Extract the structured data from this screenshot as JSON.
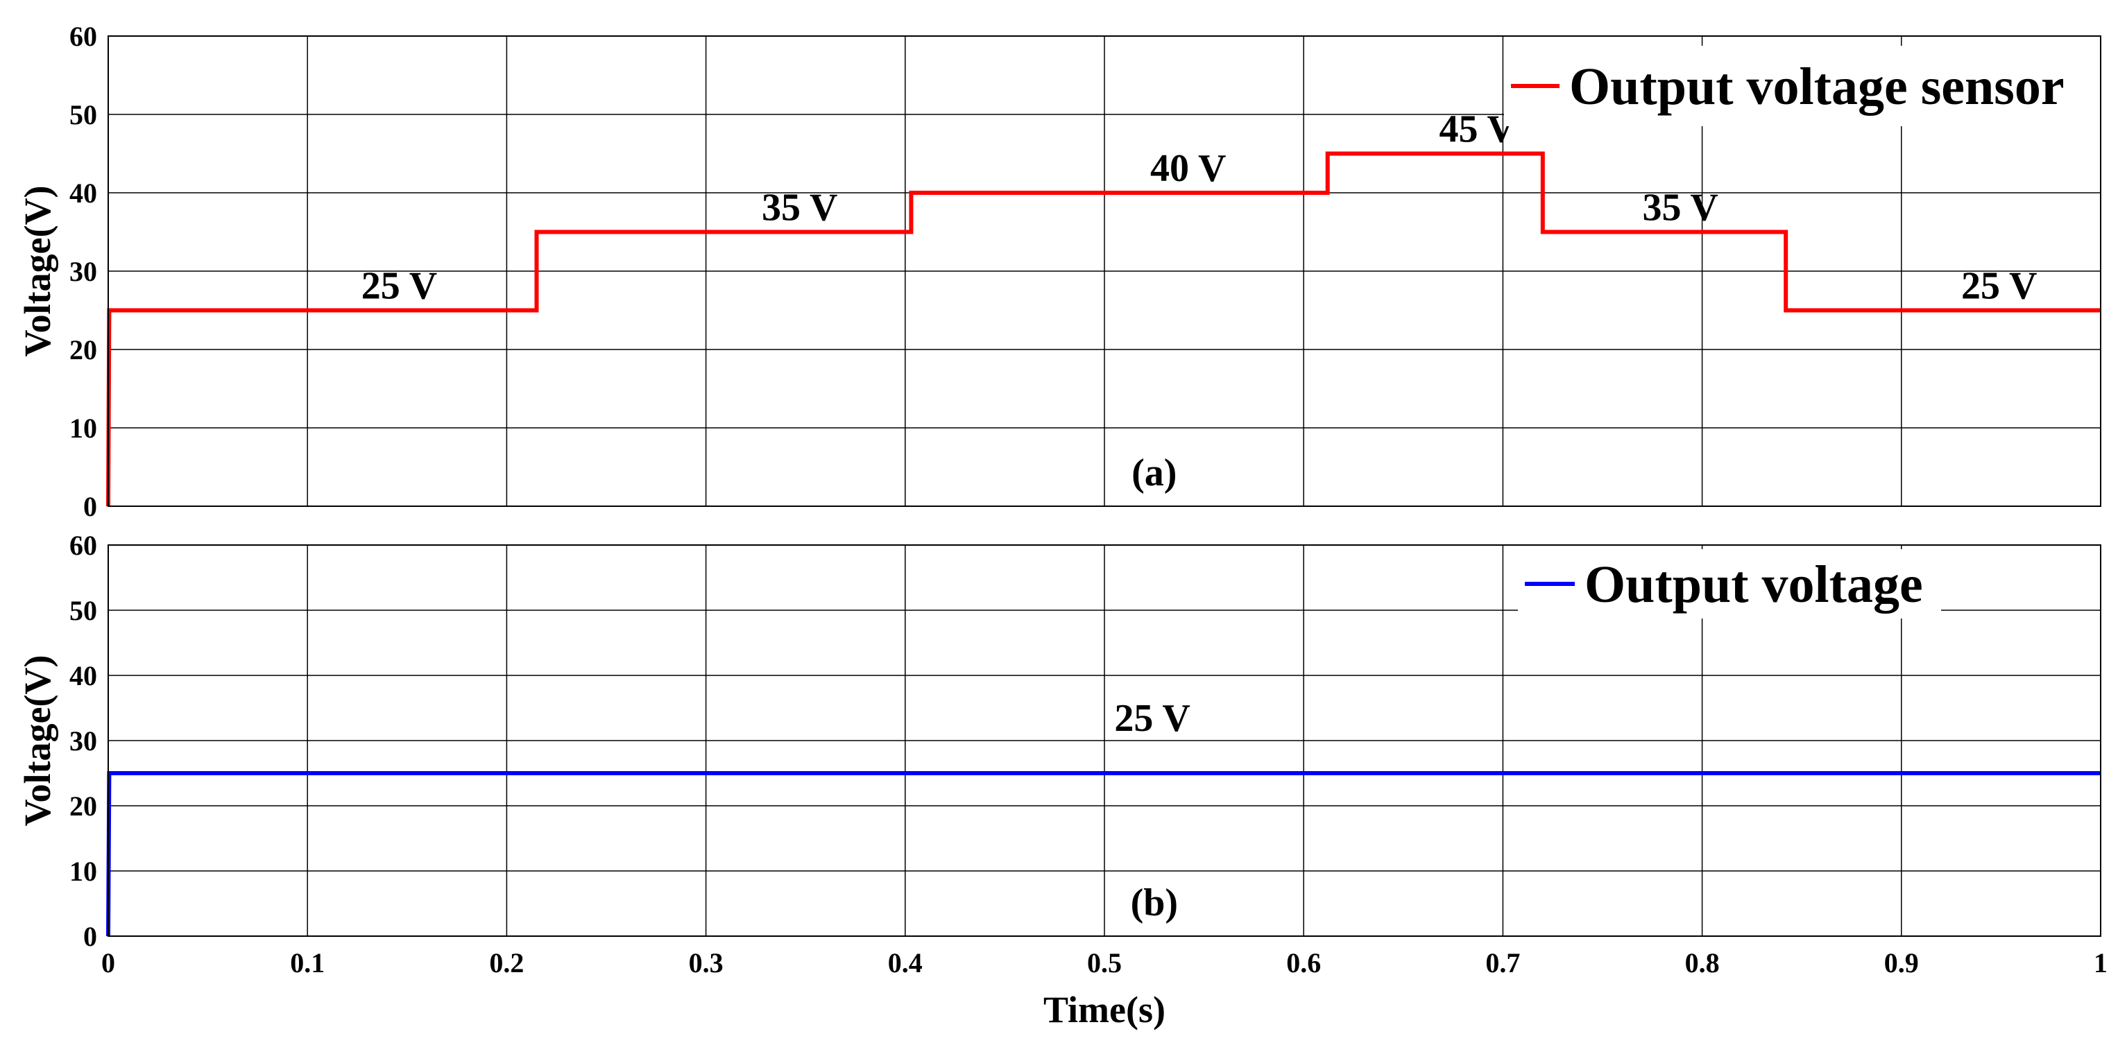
{
  "chart_data": [
    {
      "panel": "(a)",
      "type": "line",
      "xlabel": "",
      "ylabel": "Voltage(V)",
      "xlim": [
        0,
        1
      ],
      "ylim": [
        0,
        60
      ],
      "xticks": [],
      "yticks": [
        0,
        10,
        20,
        30,
        40,
        50,
        60
      ],
      "grid": true,
      "legend": {
        "position": "top-right"
      },
      "series": [
        {
          "name": "Output voltage sensor",
          "color": "#ff0000",
          "x": [
            0,
            0.0005,
            0.215,
            0.215,
            0.403,
            0.403,
            0.612,
            0.612,
            0.72,
            0.72,
            0.842,
            0.842,
            1.0
          ],
          "y": [
            0,
            25,
            25,
            35,
            35,
            40,
            40,
            45,
            45,
            35,
            35,
            25,
            25
          ]
        }
      ],
      "annotations": [
        {
          "text": "25 V",
          "x": 0.127,
          "y": 26.5
        },
        {
          "text": "35 V",
          "x": 0.328,
          "y": 36.5
        },
        {
          "text": "40 V",
          "x": 0.523,
          "y": 41.5
        },
        {
          "text": "45 V",
          "x": 0.668,
          "y": 46.5
        },
        {
          "text": "35 V",
          "x": 0.77,
          "y": 36.5
        },
        {
          "text": "25 V",
          "x": 0.93,
          "y": 26.5
        }
      ]
    },
    {
      "panel": "(b)",
      "type": "line",
      "xlabel": "Time(s)",
      "ylabel": "Voltage(V)",
      "xlim": [
        0,
        1
      ],
      "ylim": [
        0,
        60
      ],
      "xticks": [
        0,
        0.1,
        0.2,
        0.3,
        0.4,
        0.5,
        0.6,
        0.7,
        0.8,
        0.9,
        1
      ],
      "xtick_labels": [
        "0",
        "0.1",
        "0.2",
        "0.3",
        "0.4",
        "0.5",
        "0.6",
        "0.7",
        "0.8",
        "0.9",
        "1"
      ],
      "yticks": [
        0,
        10,
        20,
        30,
        40,
        50,
        60
      ],
      "grid": true,
      "legend": {
        "position": "top-right"
      },
      "series": [
        {
          "name": "Output voltage",
          "color": "#0000ff",
          "x": [
            0,
            0.0005,
            1.0
          ],
          "y": [
            0,
            25,
            25
          ]
        }
      ],
      "annotations": [
        {
          "text": "25 V",
          "x": 0.505,
          "y": 31.5
        }
      ]
    }
  ]
}
